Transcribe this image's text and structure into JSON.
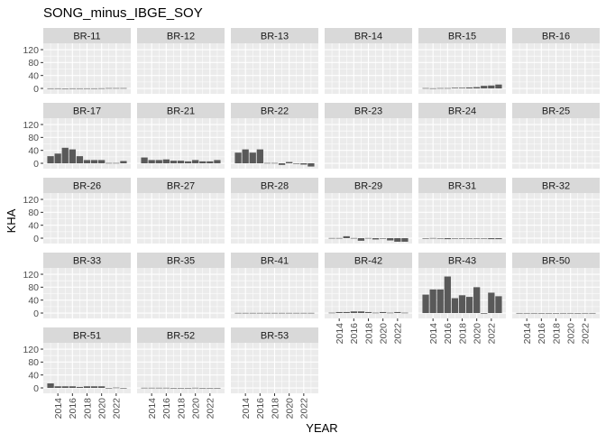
{
  "chart_data": {
    "type": "bar",
    "title": "SONG_minus_IBGE_SOY",
    "xlabel": "YEAR",
    "ylabel": "KHA",
    "x": [
      2013,
      2014,
      2015,
      2016,
      2017,
      2018,
      2019,
      2020,
      2021,
      2022,
      2023
    ],
    "x_ticks": [
      2014,
      2016,
      2018,
      2020,
      2022
    ],
    "y_ticks": [
      0,
      40,
      80,
      120
    ],
    "ylim": [
      -16.7,
      139.6
    ],
    "xlim": [
      2012,
      2024
    ],
    "grid": true,
    "facets": [
      {
        "name": "BR-11",
        "values": [
          0.3,
          0.3,
          0,
          0.3,
          0.3,
          0.3,
          0.3,
          0.5,
          1,
          1,
          1
        ]
      },
      {
        "name": "BR-12",
        "values": []
      },
      {
        "name": "BR-13",
        "values": []
      },
      {
        "name": "BR-14",
        "values": []
      },
      {
        "name": "BR-15",
        "values": [
          1,
          0.5,
          1,
          1,
          2,
          2,
          3,
          4,
          8,
          9,
          12
        ]
      },
      {
        "name": "BR-16",
        "values": []
      },
      {
        "name": "BR-17",
        "values": [
          22,
          30,
          48,
          43,
          22,
          10,
          10,
          10,
          1,
          1,
          7
        ]
      },
      {
        "name": "BR-21",
        "values": [
          18,
          10,
          10,
          12,
          8,
          8,
          6,
          10,
          6,
          6,
          10
        ]
      },
      {
        "name": "BR-22",
        "values": [
          33,
          43,
          33,
          43,
          1,
          1,
          -5,
          4,
          0,
          -4,
          -10
        ]
      },
      {
        "name": "BR-23",
        "values": []
      },
      {
        "name": "BR-24",
        "values": []
      },
      {
        "name": "BR-25",
        "values": []
      },
      {
        "name": "BR-26",
        "values": []
      },
      {
        "name": "BR-27",
        "values": []
      },
      {
        "name": "BR-28",
        "values": []
      },
      {
        "name": "BR-29",
        "values": [
          0.5,
          0.5,
          6,
          0.5,
          -8,
          0.5,
          -4,
          0,
          -7,
          -11,
          -11
        ]
      },
      {
        "name": "BR-31",
        "values": [
          0,
          0.5,
          0,
          -3,
          -1,
          -1,
          -1,
          -1,
          -1,
          -3,
          -3
        ]
      },
      {
        "name": "BR-32",
        "values": []
      },
      {
        "name": "BR-33",
        "values": []
      },
      {
        "name": "BR-35",
        "values": []
      },
      {
        "name": "BR-41",
        "values": [
          0.5,
          0.5,
          0.5,
          0.5,
          0.5,
          0.5,
          0.5,
          0.5,
          0.5,
          0.5,
          0.5
        ]
      },
      {
        "name": "BR-42",
        "values": [
          1,
          3,
          3,
          5,
          5,
          3,
          1,
          3,
          1,
          3,
          1
        ]
      },
      {
        "name": "BR-43",
        "values": [
          57,
          73,
          73,
          113,
          46,
          55,
          50,
          80,
          -2,
          63,
          52
        ]
      },
      {
        "name": "BR-50",
        "values": [
          0.2,
          0.2,
          0.2,
          0.1,
          0.1,
          0,
          0.2,
          0.2,
          0,
          0.2,
          0.2
        ]
      },
      {
        "name": "BR-51",
        "values": [
          14,
          5,
          5,
          5,
          3,
          5,
          5,
          5,
          0,
          1,
          -1
        ]
      },
      {
        "name": "BR-52",
        "values": [
          0.5,
          0.5,
          0.5,
          0.5,
          0,
          0,
          0,
          0.5,
          -1,
          -1,
          0
        ]
      },
      {
        "name": "BR-53",
        "values": []
      }
    ],
    "colors": {
      "bar": "#595959",
      "panel": "#EBEBEB",
      "strip": "#D9D9D9",
      "grid": "#FFFFFF"
    }
  }
}
